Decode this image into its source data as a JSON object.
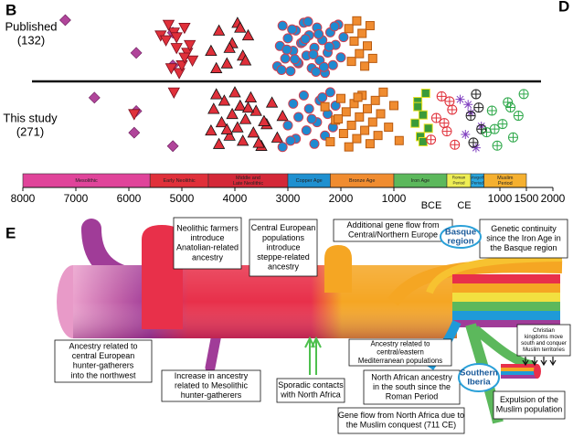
{
  "panel_labels": [
    "B",
    "D",
    "E"
  ],
  "chart_data": {
    "type": "strip",
    "xlim": [
      -8000,
      2000
    ],
    "xticks": [
      {
        "value": -8000,
        "label": "8000"
      },
      {
        "value": -7000,
        "label": "7000"
      },
      {
        "value": -6000,
        "label": "6000"
      },
      {
        "value": -5000,
        "label": "5000"
      },
      {
        "value": -4000,
        "label": "4000"
      },
      {
        "value": -3000,
        "label": "3000"
      },
      {
        "value": -2000,
        "label": "2000"
      },
      {
        "value": -1000,
        "label": "1000"
      },
      1000,
      1500,
      2000
    ],
    "era_labels": [
      "BCE",
      "CE"
    ],
    "rows": [
      {
        "label": [
          "Published",
          "(132)"
        ],
        "groups": [
          {
            "marker": "diamond",
            "color": "#b0459a",
            "years": [
              -7200,
              -5860,
              -5170,
              -5170
            ]
          },
          {
            "marker": "invtri",
            "color": "#e0303a",
            "years": [
              -5400,
              -5200,
              -5100,
              -4950,
              -4800,
              -5300,
              -5050,
              -4900,
              -5150,
              -5000,
              -4850,
              -5250,
              -4950,
              -5100
            ]
          },
          {
            "marker": "tri",
            "color": "#e0303a",
            "years": [
              -4450,
              -4300,
              -4150,
              -4050,
              -3950,
              -3850,
              -3750,
              -4350,
              -4100,
              -3900,
              -3800
            ]
          },
          {
            "marker": "circle",
            "color": "#1f8ad0",
            "years": [
              -3200,
              -3150,
              -3100,
              -3050,
              -3000,
              -2950,
              -2900,
              -2850,
              -2800,
              -2750,
              -2700,
              -2650,
              -2600,
              -2550,
              -2500,
              -2450,
              -2400,
              -2350,
              -2300,
              -2250,
              -2200,
              -2150,
              -2100,
              -2050,
              -2000,
              -1950,
              -3120,
              -3020,
              -2920,
              -2820,
              -2720,
              -2620,
              -2520,
              -2420,
              -2320,
              -2220,
              -2120,
              -2870,
              -2670,
              -2470
            ]
          },
          {
            "marker": "square",
            "color": "#f08c30",
            "years": [
              -1850,
              -1800,
              -1750,
              -1700,
              -1650,
              -1600,
              -1550,
              -1500,
              -1450,
              -1400
            ]
          }
        ]
      },
      {
        "label": [
          "This study",
          "(271)"
        ],
        "groups": [
          {
            "marker": "diamond",
            "color": "#b0459a",
            "years": [
              -6650,
              -5900,
              -5860,
              -5170
            ]
          },
          {
            "marker": "invtri",
            "color": "#e0303a",
            "years": [
              -5900,
              -5150
            ]
          },
          {
            "marker": "tri",
            "color": "#e0303a",
            "years": [
              -4450,
              -4400,
              -4300,
              -4250,
              -4200,
              -4100,
              -4050,
              -4000,
              -3950,
              -3900,
              -3850,
              -3800,
              -3700,
              -3650,
              -3600,
              -3500,
              -3400,
              -3300,
              -3200,
              -3100,
              -4350,
              -4150,
              -3750,
              -3550,
              -3450
            ]
          },
          {
            "marker": "circle",
            "color": "#1f8ad0",
            "years": [
              -3100,
              -3000,
              -2900,
              -2850,
              -2800,
              -2700,
              -2650,
              -2600,
              -2500,
              -2450,
              -2400,
              -2300,
              -2250,
              -2200,
              -2150,
              -2100,
              -2950,
              -2550,
              -2350
            ]
          },
          {
            "marker": "square",
            "color": "#f08c30",
            "years": [
              -2300,
              -2200,
              -2100,
              -2000,
              -1950,
              -1900,
              -1850,
              -1800,
              -1750,
              -1700,
              -1650,
              -1600,
              -1550,
              -1500,
              -1450,
              -1400,
              -1350,
              -1300,
              -1250,
              -1200,
              -1100,
              -1000,
              -900,
              -2050,
              -1680
            ]
          },
          {
            "marker": "square",
            "color": "#3a9a3a",
            "years": [
              -600,
              -550,
              -500,
              -450,
              -400,
              -350,
              -550,
              -450
            ]
          },
          {
            "marker": "crosscircle",
            "color": "#e0303a",
            "years": [
              -300,
              -200,
              -100,
              0,
              100,
              150,
              -50,
              50
            ]
          },
          {
            "marker": "asterisk",
            "color": "#8040c0",
            "years": [
              250,
              350,
              450,
              550,
              650,
              400
            ]
          },
          {
            "marker": "crosscircle",
            "color": "#222222",
            "years": [
              450,
              550,
              650,
              600,
              500
            ]
          },
          {
            "marker": "crosscircle",
            "color": "#2ea84a",
            "years": [
              750,
              850,
              950,
              1050,
              1150,
              1250,
              1350,
              1450,
              900,
              1200
            ]
          }
        ]
      }
    ],
    "periods": [
      {
        "lines": [
          "Mesolithic"
        ],
        "start": -8000,
        "end": -5600,
        "color": "#e0449a"
      },
      {
        "lines": [
          "Early Neolithic"
        ],
        "start": -5600,
        "end": -4500,
        "color": "#e0303a"
      },
      {
        "lines": [
          "Middle and",
          "Late Neolithic"
        ],
        "start": -4500,
        "end": -3000,
        "color": "#d42838"
      },
      {
        "lines": [
          "Copper Age"
        ],
        "start": -3000,
        "end": -2200,
        "color": "#1f90d0"
      },
      {
        "lines": [
          "Bronze Age"
        ],
        "start": -2200,
        "end": -1000,
        "color": "#f08c30"
      },
      {
        "lines": [
          "Iron Age"
        ],
        "start": -1000,
        "end": 0,
        "color": "#5cb85c"
      },
      {
        "lines": [
          "Roman",
          "Period"
        ],
        "start": 0,
        "end": 450,
        "color": "#eeee55"
      },
      {
        "lines": [
          "Visigoth",
          "Period"
        ],
        "start": 450,
        "end": 700,
        "color": "#2aa8e0"
      },
      {
        "lines": [
          "Muslim",
          "Period"
        ],
        "start": 700,
        "end": 1500,
        "color": "#f5b030"
      }
    ]
  },
  "diagram": {
    "annotations": [
      {
        "lines": [
          "Neolithic farmers",
          "introduce",
          "Anatolian-related",
          "ancestry"
        ]
      },
      {
        "lines": [
          "Central European",
          "populations",
          "introduce",
          "steppe-related",
          "ancestry"
        ]
      },
      {
        "lines": [
          "Additional gene flow from",
          "Central/Northern Europe"
        ]
      },
      {
        "lines": [
          "Genetic continuity",
          "since the Iron Age in",
          "the Basque region"
        ]
      },
      {
        "lines": [
          "Ancestry related to",
          "central European",
          "hunter-gatherers",
          "into the northwest"
        ]
      },
      {
        "lines": [
          "Increase in ancestry",
          "related to Mesolithic",
          "hunter-gatherers"
        ]
      },
      {
        "lines": [
          "Sporadic contacts",
          "with North Africa"
        ]
      },
      {
        "lines": [
          "Ancestry related to",
          "central/eastern",
          "Mediterranean populations"
        ]
      },
      {
        "lines": [
          "North African ancestry",
          "in the south since the",
          "Roman Period"
        ]
      },
      {
        "lines": [
          "Christian",
          "kingdoms move",
          "south and conquer",
          "Muslim territories"
        ]
      },
      {
        "lines": [
          "Gene flow from North Africa due to",
          "the Muslim conquest (711 CE)"
        ]
      },
      {
        "lines": [
          "Expulsion of the",
          "Muslim population"
        ]
      }
    ],
    "regions": [
      {
        "lines": [
          "Basque",
          "region"
        ]
      },
      {
        "lines": [
          "Southern",
          "Iberia"
        ]
      }
    ]
  }
}
